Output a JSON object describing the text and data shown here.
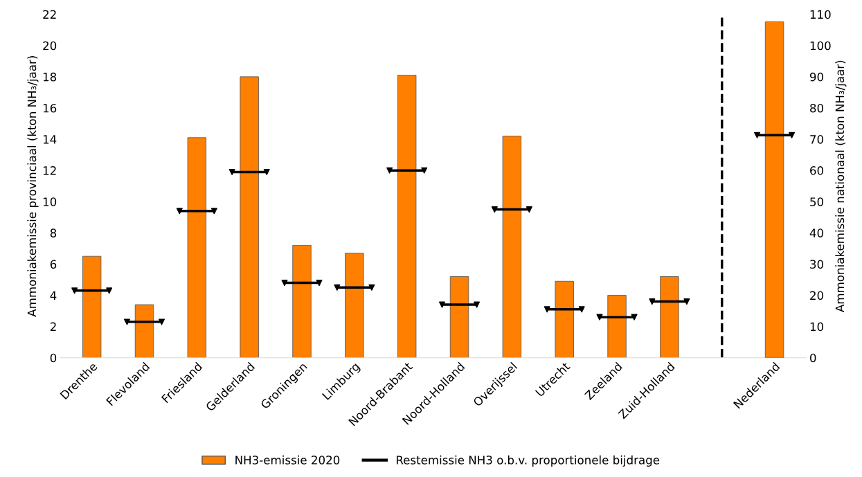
{
  "chart_data": {
    "type": "bar",
    "categories": [
      "Drenthe",
      "Flevoland",
      "Friesland",
      "Gelderland",
      "Groningen",
      "Limburg",
      "Noord-Brabant",
      "Noord-Holland",
      "Overijssel",
      "Utrecht",
      "Zeeland",
      "Zuid-Holland",
      null,
      "Nederland"
    ],
    "ylabel": "Ammoniakemissie provinciaal (kton NH₃/jaar)",
    "y2label": "Ammoniakemissie nationaal (kton NH₃/jaar)",
    "ylim": [
      0,
      22
    ],
    "yticks": [
      0,
      2,
      4,
      6,
      8,
      10,
      12,
      14,
      16,
      18,
      20,
      22
    ],
    "y2lim": [
      0,
      110
    ],
    "y2ticks": [
      0,
      10,
      20,
      30,
      40,
      50,
      60,
      70,
      80,
      90,
      100,
      110
    ],
    "series": [
      {
        "name": "NH3-emissie 2020",
        "color": "#ff7f00",
        "values": [
          6.5,
          3.4,
          14.1,
          18.0,
          7.2,
          6.7,
          18.1,
          5.2,
          14.2,
          4.9,
          4.0,
          5.2,
          null,
          null
        ]
      },
      {
        "axis": "y2",
        "color": "#ff7f00",
        "values": [
          null,
          null,
          null,
          null,
          null,
          null,
          null,
          null,
          null,
          null,
          null,
          null,
          null,
          107.6
        ]
      },
      {
        "name": "Restemissie NH3 o.b.v. proportionele bijdrage",
        "type": "scatter",
        "color": "#000000",
        "values": [
          4.3,
          2.3,
          9.4,
          11.9,
          4.8,
          4.5,
          12.0,
          3.4,
          9.5,
          3.1,
          2.6,
          3.6,
          null,
          null
        ]
      },
      {
        "type": "scatter",
        "axis": "y2",
        "color": "#000000",
        "values": [
          null,
          null,
          null,
          null,
          null,
          null,
          null,
          null,
          null,
          null,
          null,
          null,
          null,
          71.3
        ]
      }
    ],
    "legend": "bottom"
  }
}
